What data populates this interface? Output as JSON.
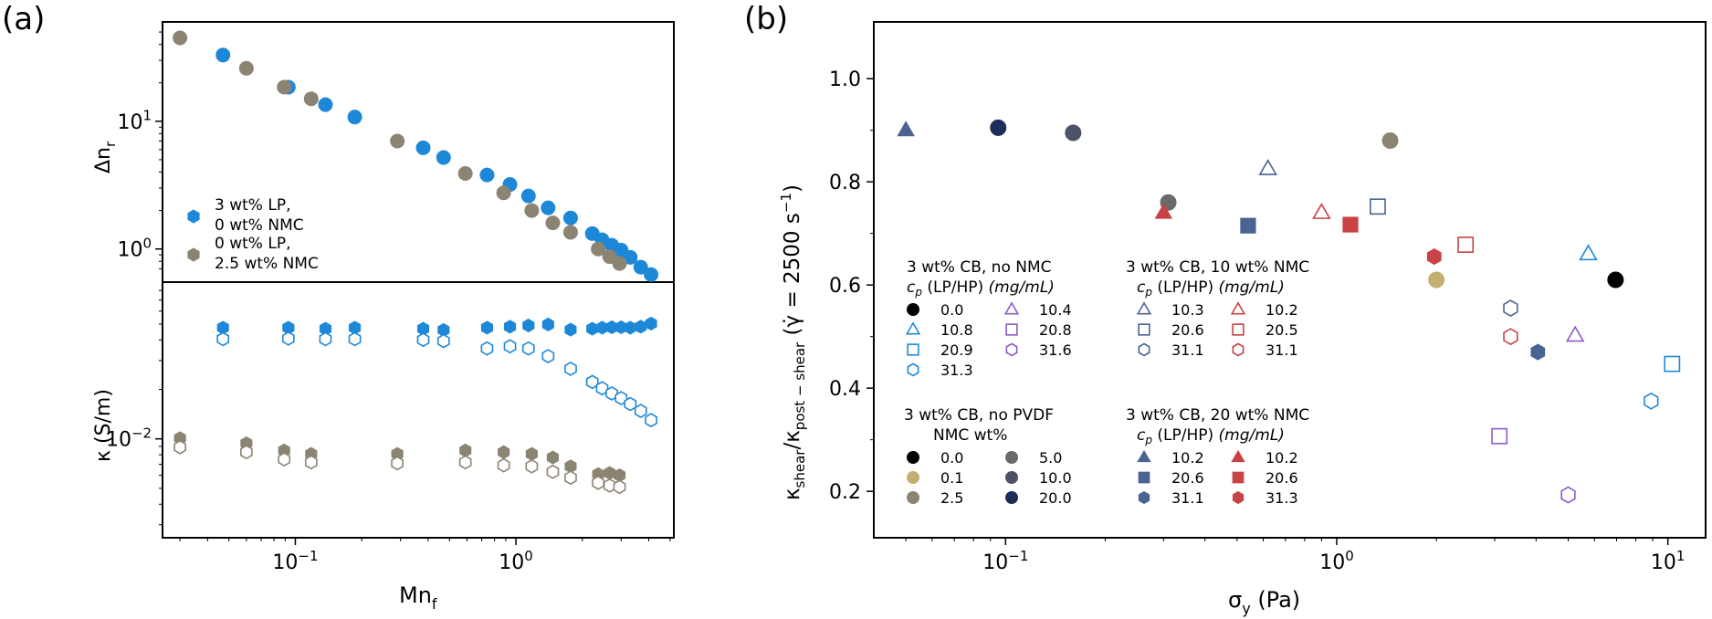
{
  "panel_a": {
    "label": "(a)",
    "top_ylabel": "Δn",
    "top_ylabel_sub": "r",
    "bottom_ylabel": "κ (S/m)",
    "xlabel": "Mn",
    "xlabel_sub": "f",
    "top_yticks": [
      {
        "v": 1,
        "label": "10",
        "sup": "0"
      },
      {
        "v": 10,
        "label": "10",
        "sup": "1"
      }
    ],
    "top_minor_yticks": [
      0.7,
      0.8,
      0.9,
      2,
      3,
      4,
      5,
      6,
      7,
      8,
      9,
      20,
      30,
      40,
      50
    ],
    "bottom_yticks": [
      {
        "v": 0.01,
        "label": "10",
        "sup": "−2"
      }
    ],
    "xticks": [
      {
        "v": 0.1,
        "label": "10",
        "sup": "−1"
      },
      {
        "v": 1,
        "label": "10",
        "sup": "0"
      }
    ],
    "legend": [
      {
        "line1": "3 wt% LP,",
        "line2": "0 wt% NMC",
        "color": "#1e88d8"
      },
      {
        "line1": "0 wt% LP,",
        "line2": "2.5 wt% NMC",
        "color": "#8c8472"
      }
    ]
  },
  "panel_b": {
    "label": "(b)",
    "ylabel": "κ_shear/κ_post−shear (γ̇ = 2500 s⁻¹)",
    "xlabel": "σ",
    "xlabel_sub": "y",
    "xlabel_unit": " (Pa)",
    "yticks": [
      "0.2",
      "0.4",
      "0.6",
      "0.8",
      "1.0"
    ],
    "xticks": [
      {
        "v": 0.1,
        "label": "10",
        "sup": "−1"
      },
      {
        "v": 1,
        "label": "10",
        "sup": "0"
      },
      {
        "v": 10,
        "label": "10",
        "sup": "1"
      }
    ],
    "legend_groups": [
      {
        "title1": "3 wt% CB, no NMC",
        "title2": "c_p (LP/HP) (mg/mL)",
        "entries": [
          {
            "label": "0.0",
            "marker": "circle",
            "fill": true,
            "color": "#000000"
          },
          {
            "label": "10.8",
            "marker": "triangle",
            "fill": false,
            "color": "#1e88d8"
          },
          {
            "label": "20.9",
            "marker": "square",
            "fill": false,
            "color": "#1e88d8"
          },
          {
            "label": "31.3",
            "marker": "hexagon",
            "fill": false,
            "color": "#1e88d8"
          },
          {
            "label": "10.4",
            "marker": "triangle",
            "fill": false,
            "color": "#8a5cc8"
          },
          {
            "label": "20.8",
            "marker": "square",
            "fill": false,
            "color": "#8a5cc8"
          },
          {
            "label": "31.6",
            "marker": "hexagon",
            "fill": false,
            "color": "#8a5cc8"
          }
        ]
      },
      {
        "title1": "3 wt% CB, 10 wt% NMC",
        "title2": "c_p (LP/HP) (mg/mL)",
        "entries": [
          {
            "label": "10.3",
            "marker": "triangle",
            "fill": false,
            "color": "#4a6392"
          },
          {
            "label": "20.6",
            "marker": "square",
            "fill": false,
            "color": "#4a6392"
          },
          {
            "label": "31.1",
            "marker": "hexagon",
            "fill": false,
            "color": "#4a6392"
          },
          {
            "label": "10.2",
            "marker": "triangle",
            "fill": false,
            "color": "#c84246"
          },
          {
            "label": "20.5",
            "marker": "square",
            "fill": false,
            "color": "#c84246"
          },
          {
            "label": "31.1",
            "marker": "hexagon",
            "fill": false,
            "color": "#c84246"
          }
        ]
      },
      {
        "title1": "3 wt% CB, no PVDF",
        "title2": "NMC wt%",
        "entries": [
          {
            "label": "0.0",
            "marker": "circle",
            "fill": true,
            "color": "#000000"
          },
          {
            "label": "0.1",
            "marker": "circle",
            "fill": true,
            "color": "#c2b070"
          },
          {
            "label": "2.5",
            "marker": "circle",
            "fill": true,
            "color": "#8c8472"
          },
          {
            "label": "5.0",
            "marker": "circle",
            "fill": true,
            "color": "#6a6a6a"
          },
          {
            "label": "10.0",
            "marker": "circle",
            "fill": true,
            "color": "#4e5268"
          },
          {
            "label": "20.0",
            "marker": "circle",
            "fill": true,
            "color": "#1f2d5a"
          }
        ]
      },
      {
        "title1": "3 wt% CB, 20 wt% NMC",
        "title2": "c_p (LP/HP) (mg/mL)",
        "entries": [
          {
            "label": "10.2",
            "marker": "triangle",
            "fill": true,
            "color": "#4a6392"
          },
          {
            "label": "20.6",
            "marker": "square",
            "fill": true,
            "color": "#4a6392"
          },
          {
            "label": "31.1",
            "marker": "hexagon",
            "fill": true,
            "color": "#4a6392"
          },
          {
            "label": "10.2",
            "marker": "triangle",
            "fill": true,
            "color": "#c84246"
          },
          {
            "label": "20.6",
            "marker": "square",
            "fill": true,
            "color": "#c84246"
          },
          {
            "label": "31.3",
            "marker": "hexagon",
            "fill": true,
            "color": "#c84246"
          }
        ]
      }
    ]
  },
  "chart_data": [
    {
      "type": "scatter",
      "title": "(a) top",
      "xlabel": "Mn_f",
      "ylabel": "Δn_r",
      "xscale": "log",
      "yscale": "log",
      "xlim": [
        0.025,
        5.2
      ],
      "ylim": [
        0.55,
        60
      ],
      "series": [
        {
          "name": "3 wt% LP, 0 wt% NMC",
          "color": "#1e88d8",
          "x": [
            0.047,
            0.093,
            0.137,
            0.186,
            0.38,
            0.47,
            0.74,
            0.94,
            1.14,
            1.4,
            1.77,
            2.22,
            2.46,
            2.72,
            3.0,
            3.3,
            3.68,
            4.1
          ],
          "y": [
            33,
            18.5,
            13.5,
            10.8,
            6.2,
            5.2,
            3.8,
            3.2,
            2.6,
            2.1,
            1.75,
            1.32,
            1.18,
            1.07,
            0.98,
            0.86,
            0.72,
            0.63
          ]
        },
        {
          "name": "0 wt% LP, 2.5 wt% NMC",
          "color": "#8c8472",
          "x": [
            0.03,
            0.06,
            0.089,
            0.118,
            0.29,
            0.59,
            0.88,
            1.18,
            1.47,
            1.77,
            2.36,
            2.66,
            2.95
          ],
          "y": [
            45,
            26,
            18.5,
            15,
            7,
            3.9,
            2.75,
            2.0,
            1.6,
            1.35,
            1.0,
            0.87,
            0.77
          ]
        }
      ]
    },
    {
      "type": "scatter",
      "title": "(a) bottom",
      "xlabel": "Mn_f",
      "ylabel": "κ (S/m)",
      "xscale": "log",
      "yscale": "log",
      "xlim": [
        0.025,
        5.2
      ],
      "ylim": [
        0.0025,
        0.09
      ],
      "series": [
        {
          "name": "LP filled",
          "color": "#1e88d8",
          "marker": "hexagon",
          "filled": true,
          "x": [
            0.047,
            0.093,
            0.137,
            0.186,
            0.38,
            0.47,
            0.74,
            0.94,
            1.14,
            1.4,
            1.77,
            2.22,
            2.46,
            2.72,
            3.0,
            3.3,
            3.68,
            4.1
          ],
          "y": [
            0.0475,
            0.0475,
            0.0468,
            0.0475,
            0.0468,
            0.046,
            0.0475,
            0.0482,
            0.049,
            0.0497,
            0.0462,
            0.0468,
            0.0475,
            0.0478,
            0.0478,
            0.0475,
            0.0482,
            0.0503
          ]
        },
        {
          "name": "LP open",
          "color": "#1e88d8",
          "marker": "hexagon",
          "filled": false,
          "x": [
            0.047,
            0.093,
            0.137,
            0.186,
            0.38,
            0.47,
            0.74,
            0.94,
            1.14,
            1.4,
            1.77,
            2.22,
            2.46,
            2.72,
            3.0,
            3.3,
            3.68,
            4.1
          ],
          "y": [
            0.0405,
            0.0408,
            0.0405,
            0.0405,
            0.0401,
            0.0394,
            0.0355,
            0.0366,
            0.0355,
            0.0319,
            0.0267,
            0.0222,
            0.0203,
            0.0189,
            0.0177,
            0.0163,
            0.0148,
            0.013
          ]
        },
        {
          "name": "NMC filled",
          "color": "#8c8472",
          "marker": "hexagon",
          "filled": true,
          "x": [
            0.03,
            0.06,
            0.089,
            0.118,
            0.29,
            0.59,
            0.88,
            1.18,
            1.47,
            1.77,
            2.36,
            2.66,
            2.95
          ],
          "y": [
            0.0101,
            0.0094,
            0.0085,
            0.0081,
            0.0081,
            0.0085,
            0.0083,
            0.0081,
            0.0077,
            0.0068,
            0.0061,
            0.0062,
            0.006
          ]
        },
        {
          "name": "NMC open",
          "color": "#8c8472",
          "marker": "hexagon",
          "filled": false,
          "x": [
            0.03,
            0.06,
            0.089,
            0.118,
            0.29,
            0.59,
            0.88,
            1.18,
            1.47,
            1.77,
            2.36,
            2.66,
            2.95
          ],
          "y": [
            0.0089,
            0.0083,
            0.0075,
            0.0072,
            0.0071,
            0.0072,
            0.0069,
            0.0068,
            0.0063,
            0.0058,
            0.0054,
            0.0052,
            0.0051
          ]
        }
      ]
    },
    {
      "type": "scatter",
      "title": "(b)",
      "xlabel": "σ_y (Pa)",
      "ylabel": "κ_shear/κ_post−shear (γ̇ = 2500 s⁻¹)",
      "xscale": "log",
      "xlim": [
        0.04,
        13
      ],
      "ylim": [
        0.11,
        1.11
      ],
      "points": [
        {
          "x": 0.05,
          "y": 0.9,
          "marker": "triangle",
          "fill": true,
          "color": "#4a6392"
        },
        {
          "x": 0.095,
          "y": 0.905,
          "marker": "circle",
          "fill": true,
          "color": "#1f2d5a"
        },
        {
          "x": 0.16,
          "y": 0.895,
          "marker": "circle",
          "fill": true,
          "color": "#4e5268"
        },
        {
          "x": 0.31,
          "y": 0.76,
          "marker": "circle",
          "fill": true,
          "color": "#6a6a6a"
        },
        {
          "x": 0.3,
          "y": 0.74,
          "marker": "triangle",
          "fill": true,
          "color": "#c84246"
        },
        {
          "x": 0.62,
          "y": 0.825,
          "marker": "triangle",
          "fill": false,
          "color": "#4a6392"
        },
        {
          "x": 0.54,
          "y": 0.715,
          "marker": "square",
          "fill": true,
          "color": "#4a6392"
        },
        {
          "x": 0.9,
          "y": 0.74,
          "marker": "triangle",
          "fill": false,
          "color": "#c84246"
        },
        {
          "x": 1.1,
          "y": 0.717,
          "marker": "square",
          "fill": true,
          "color": "#c84246"
        },
        {
          "x": 1.33,
          "y": 0.752,
          "marker": "square",
          "fill": false,
          "color": "#4a6392"
        },
        {
          "x": 1.45,
          "y": 0.88,
          "marker": "circle",
          "fill": true,
          "color": "#8c8472"
        },
        {
          "x": 1.97,
          "y": 0.655,
          "marker": "hexagon",
          "fill": true,
          "color": "#c84246"
        },
        {
          "x": 2.0,
          "y": 0.61,
          "marker": "circle",
          "fill": true,
          "color": "#c2b070"
        },
        {
          "x": 2.45,
          "y": 0.678,
          "marker": "square",
          "fill": false,
          "color": "#c84246"
        },
        {
          "x": 3.35,
          "y": 0.555,
          "marker": "hexagon",
          "fill": false,
          "color": "#4a6392"
        },
        {
          "x": 3.35,
          "y": 0.5,
          "marker": "hexagon",
          "fill": false,
          "color": "#c84246"
        },
        {
          "x": 3.1,
          "y": 0.307,
          "marker": "square",
          "fill": false,
          "color": "#8a5cc8"
        },
        {
          "x": 4.05,
          "y": 0.47,
          "marker": "hexagon",
          "fill": true,
          "color": "#4a6392"
        },
        {
          "x": 5.25,
          "y": 0.502,
          "marker": "triangle",
          "fill": false,
          "color": "#8a5cc8"
        },
        {
          "x": 5.0,
          "y": 0.193,
          "marker": "hexagon",
          "fill": false,
          "color": "#8a5cc8"
        },
        {
          "x": 5.75,
          "y": 0.66,
          "marker": "triangle",
          "fill": false,
          "color": "#1e88d8"
        },
        {
          "x": 6.95,
          "y": 0.61,
          "marker": "circle",
          "fill": true,
          "color": "#000000"
        },
        {
          "x": 8.9,
          "y": 0.375,
          "marker": "hexagon",
          "fill": false,
          "color": "#1e88d8"
        },
        {
          "x": 10.3,
          "y": 0.447,
          "marker": "square",
          "fill": false,
          "color": "#1e88d8"
        }
      ]
    }
  ]
}
